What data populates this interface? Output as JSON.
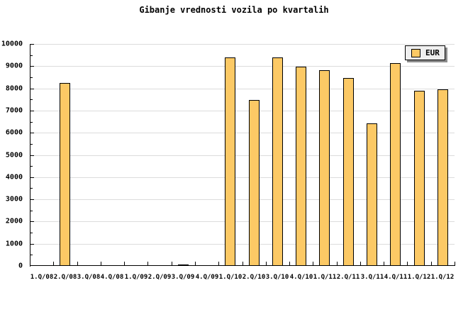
{
  "title": "Gibanje vrednosti vozila po kvartalih",
  "legend": {
    "label": "EUR"
  },
  "colors": {
    "background": "#FFFFFF",
    "bar_fill": "#FCC965",
    "bar_border": "#000000",
    "grid": "#DCDCDC",
    "axis": "#000000",
    "text": "#000000",
    "legend_bg": "#EFEFEF",
    "legend_shadow": "#8C8C8C"
  },
  "chart_data": {
    "type": "bar",
    "title": "Gibanje vrednosti vozila po kvartalih",
    "categories": [
      "1.Q/08",
      "2.Q/08",
      "3.Q/08",
      "4.Q/08",
      "1.Q/09",
      "2.Q/09",
      "3.Q/09",
      "4.Q/09",
      "1.Q/10",
      "2.Q/10",
      "3.Q/10",
      "4.Q/10",
      "1.Q/11",
      "2.Q/11",
      "3.Q/11",
      "4.Q/11",
      "1.Q/12",
      "1.Q/12"
    ],
    "series": [
      {
        "name": "EUR",
        "values": [
          null,
          8230,
          null,
          null,
          null,
          null,
          50,
          null,
          9400,
          7480,
          9400,
          8970,
          8810,
          8470,
          6410,
          9130,
          7880,
          7960
        ]
      }
    ],
    "xlabel": "",
    "ylabel": "",
    "ylim": [
      0,
      10000
    ],
    "ytick_step": 1000,
    "ytick_minor_step": 500,
    "ytick_labels": [
      "0",
      "1000",
      "2000",
      "3000",
      "4000",
      "5000",
      "6000",
      "7000",
      "8000",
      "9000",
      "10000"
    ],
    "grid": "horizontal-major",
    "legend_position": "top-right"
  }
}
